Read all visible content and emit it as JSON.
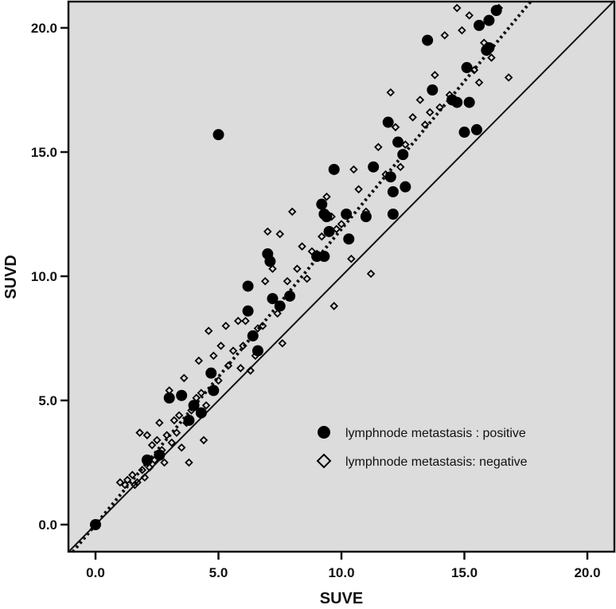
{
  "chart_data": {
    "type": "scatter",
    "title": "",
    "xlabel": "SUVE",
    "ylabel": "SUVD",
    "xlim": [
      -1.1,
      21.1
    ],
    "ylim": [
      -1.1,
      21.1
    ],
    "xticks": [
      0.0,
      5.0,
      10.0,
      15.0,
      20.0
    ],
    "yticks": [
      0.0,
      5.0,
      10.0,
      15.0,
      20.0
    ],
    "xtick_labels": [
      "0.0",
      "5.0",
      "10.0",
      "15.0",
      "20.0"
    ],
    "ytick_labels": [
      "0.0",
      "5.0",
      "10.0",
      "15.0",
      "20.0"
    ],
    "grid": false,
    "background": "#dcdcdc",
    "legend_position": "lower right (inside)",
    "reference_lines": [
      {
        "name": "identity line y = x",
        "style": "solid",
        "slope": 1.0,
        "intercept": 0.0
      },
      {
        "name": "regression fit",
        "style": "dotted",
        "slope": 1.19,
        "intercept": 0.0
      }
    ],
    "series": [
      {
        "name": "lymphnode metastasis : positive",
        "marker": "filled-circle",
        "color": "#000000",
        "points": [
          [
            0.0,
            0.0
          ],
          [
            2.1,
            2.6
          ],
          [
            2.6,
            2.8
          ],
          [
            3.0,
            5.1
          ],
          [
            3.5,
            5.2
          ],
          [
            3.8,
            4.2
          ],
          [
            4.0,
            4.8
          ],
          [
            4.3,
            4.5
          ],
          [
            4.7,
            6.1
          ],
          [
            4.8,
            5.4
          ],
          [
            5.0,
            15.7
          ],
          [
            6.2,
            9.6
          ],
          [
            6.2,
            8.6
          ],
          [
            6.4,
            7.6
          ],
          [
            6.6,
            7.0
          ],
          [
            7.0,
            10.9
          ],
          [
            7.1,
            10.6
          ],
          [
            7.2,
            9.1
          ],
          [
            7.5,
            8.8
          ],
          [
            7.9,
            9.2
          ],
          [
            9.0,
            10.8
          ],
          [
            9.3,
            10.8
          ],
          [
            9.2,
            12.9
          ],
          [
            9.3,
            12.5
          ],
          [
            9.4,
            12.4
          ],
          [
            9.5,
            11.8
          ],
          [
            9.7,
            14.3
          ],
          [
            10.2,
            12.5
          ],
          [
            10.3,
            11.5
          ],
          [
            11.0,
            12.4
          ],
          [
            11.3,
            14.4
          ],
          [
            11.9,
            16.2
          ],
          [
            12.0,
            14.0
          ],
          [
            12.1,
            12.5
          ],
          [
            12.1,
            13.4
          ],
          [
            12.3,
            15.4
          ],
          [
            12.5,
            14.9
          ],
          [
            12.6,
            13.6
          ],
          [
            13.5,
            19.5
          ],
          [
            13.7,
            17.5
          ],
          [
            14.5,
            17.1
          ],
          [
            14.7,
            17.0
          ],
          [
            15.0,
            15.8
          ],
          [
            15.1,
            18.4
          ],
          [
            15.2,
            17.0
          ],
          [
            15.5,
            15.9
          ],
          [
            15.6,
            20.1
          ],
          [
            15.9,
            19.1
          ],
          [
            16.0,
            19.2
          ],
          [
            16.0,
            20.3
          ],
          [
            16.3,
            20.7
          ]
        ]
      },
      {
        "name": "lymphnode metastasis: negative",
        "marker": "open-diamond",
        "color": "#000000",
        "points": [
          [
            1.0,
            1.7
          ],
          [
            1.2,
            1.6
          ],
          [
            1.3,
            1.8
          ],
          [
            1.5,
            2.0
          ],
          [
            1.6,
            1.6
          ],
          [
            1.7,
            1.7
          ],
          [
            1.8,
            3.7
          ],
          [
            1.9,
            2.2
          ],
          [
            2.0,
            1.9
          ],
          [
            2.1,
            3.6
          ],
          [
            2.2,
            2.3
          ],
          [
            2.3,
            3.2
          ],
          [
            2.4,
            2.6
          ],
          [
            2.5,
            3.4
          ],
          [
            2.6,
            4.1
          ],
          [
            2.7,
            3.0
          ],
          [
            2.8,
            2.5
          ],
          [
            2.9,
            3.6
          ],
          [
            3.0,
            5.4
          ],
          [
            3.1,
            3.3
          ],
          [
            3.2,
            4.2
          ],
          [
            3.3,
            3.7
          ],
          [
            3.4,
            4.4
          ],
          [
            3.5,
            3.1
          ],
          [
            3.6,
            5.9
          ],
          [
            3.7,
            4.1
          ],
          [
            3.8,
            2.5
          ],
          [
            3.9,
            4.6
          ],
          [
            4.1,
            5.1
          ],
          [
            4.2,
            6.6
          ],
          [
            4.3,
            5.3
          ],
          [
            4.4,
            3.4
          ],
          [
            4.5,
            4.8
          ],
          [
            4.6,
            7.8
          ],
          [
            4.8,
            6.8
          ],
          [
            5.0,
            5.8
          ],
          [
            5.1,
            7.2
          ],
          [
            5.3,
            8.0
          ],
          [
            5.4,
            6.4
          ],
          [
            5.6,
            7.0
          ],
          [
            5.8,
            8.2
          ],
          [
            5.9,
            6.3
          ],
          [
            6.0,
            7.2
          ],
          [
            6.1,
            8.2
          ],
          [
            6.3,
            6.2
          ],
          [
            6.5,
            6.8
          ],
          [
            6.6,
            7.9
          ],
          [
            6.8,
            8.0
          ],
          [
            6.9,
            9.8
          ],
          [
            7.0,
            11.8
          ],
          [
            7.2,
            10.3
          ],
          [
            7.4,
            8.5
          ],
          [
            7.5,
            11.7
          ],
          [
            7.6,
            7.3
          ],
          [
            7.8,
            9.8
          ],
          [
            8.0,
            12.6
          ],
          [
            8.2,
            10.3
          ],
          [
            8.4,
            11.2
          ],
          [
            8.6,
            9.9
          ],
          [
            8.8,
            11.0
          ],
          [
            9.0,
            10.9
          ],
          [
            9.2,
            11.6
          ],
          [
            9.4,
            13.2
          ],
          [
            9.6,
            12.4
          ],
          [
            9.7,
            8.8
          ],
          [
            9.8,
            11.9
          ],
          [
            10.0,
            12.1
          ],
          [
            10.4,
            10.7
          ],
          [
            10.5,
            14.3
          ],
          [
            10.7,
            13.5
          ],
          [
            11.0,
            12.6
          ],
          [
            11.2,
            10.1
          ],
          [
            11.5,
            15.2
          ],
          [
            11.8,
            14.1
          ],
          [
            12.0,
            17.4
          ],
          [
            12.2,
            16.0
          ],
          [
            12.4,
            14.4
          ],
          [
            12.6,
            15.3
          ],
          [
            12.9,
            16.4
          ],
          [
            13.2,
            17.1
          ],
          [
            13.4,
            16.1
          ],
          [
            13.6,
            16.6
          ],
          [
            13.8,
            18.1
          ],
          [
            14.0,
            16.8
          ],
          [
            14.2,
            19.7
          ],
          [
            14.4,
            17.3
          ],
          [
            14.7,
            20.8
          ],
          [
            14.9,
            19.9
          ],
          [
            15.2,
            20.5
          ],
          [
            15.4,
            18.3
          ],
          [
            15.6,
            17.8
          ],
          [
            15.8,
            19.4
          ],
          [
            16.1,
            18.8
          ],
          [
            16.4,
            20.8
          ],
          [
            16.8,
            18.0
          ]
        ]
      }
    ],
    "legend": [
      {
        "marker": "filled-circle",
        "label": "lymphnode metastasis : positive"
      },
      {
        "marker": "open-diamond",
        "label": "lymphnode metastasis: negative"
      }
    ]
  }
}
